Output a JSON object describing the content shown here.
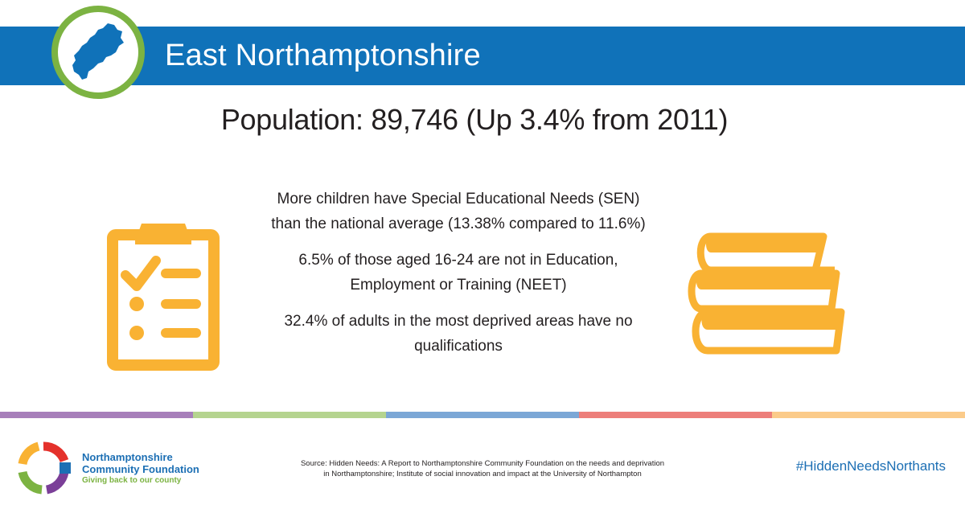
{
  "header": {
    "title": "East Northamptonshire",
    "map_icon": "county-map-icon",
    "banner_color": "#1072b9",
    "ring_color": "#7cb342"
  },
  "population": {
    "text": "Population: 89,746 (Up 3.4% from 2011)"
  },
  "facts": {
    "sen_line1": "More children have Special Educational Needs (SEN)",
    "sen_line2": "than the national average (13.38% compared to 11.6%)",
    "neet_line1": "6.5% of those aged 16-24 are not in Education,",
    "neet_line2": "Employment or Training (NEET)",
    "qual_line1": "32.4% of adults in the most deprived areas have no",
    "qual_line2": "qualifications"
  },
  "icons": {
    "left": "clipboard-checklist-icon",
    "right": "stack-of-books-icon",
    "accent_color": "#f9b233"
  },
  "divider": {
    "colors": [
      "#a77fba",
      "#b5d48f",
      "#7ba7d6",
      "#ed7e7a",
      "#fbcb8a"
    ]
  },
  "footer": {
    "org_name_line1": "Northamptonshire",
    "org_name_line2": "Community Foundation",
    "org_tagline": "Giving back to our county",
    "source_line1": "Source: Hidden Needs: A Report to Northamptonshire Community Foundation on the needs and deprivation",
    "source_line2": "in Northamptonshire; Institute of social innovation and impact at the University of Northampton",
    "hashtag": "#HiddenNeedsNorthants"
  }
}
